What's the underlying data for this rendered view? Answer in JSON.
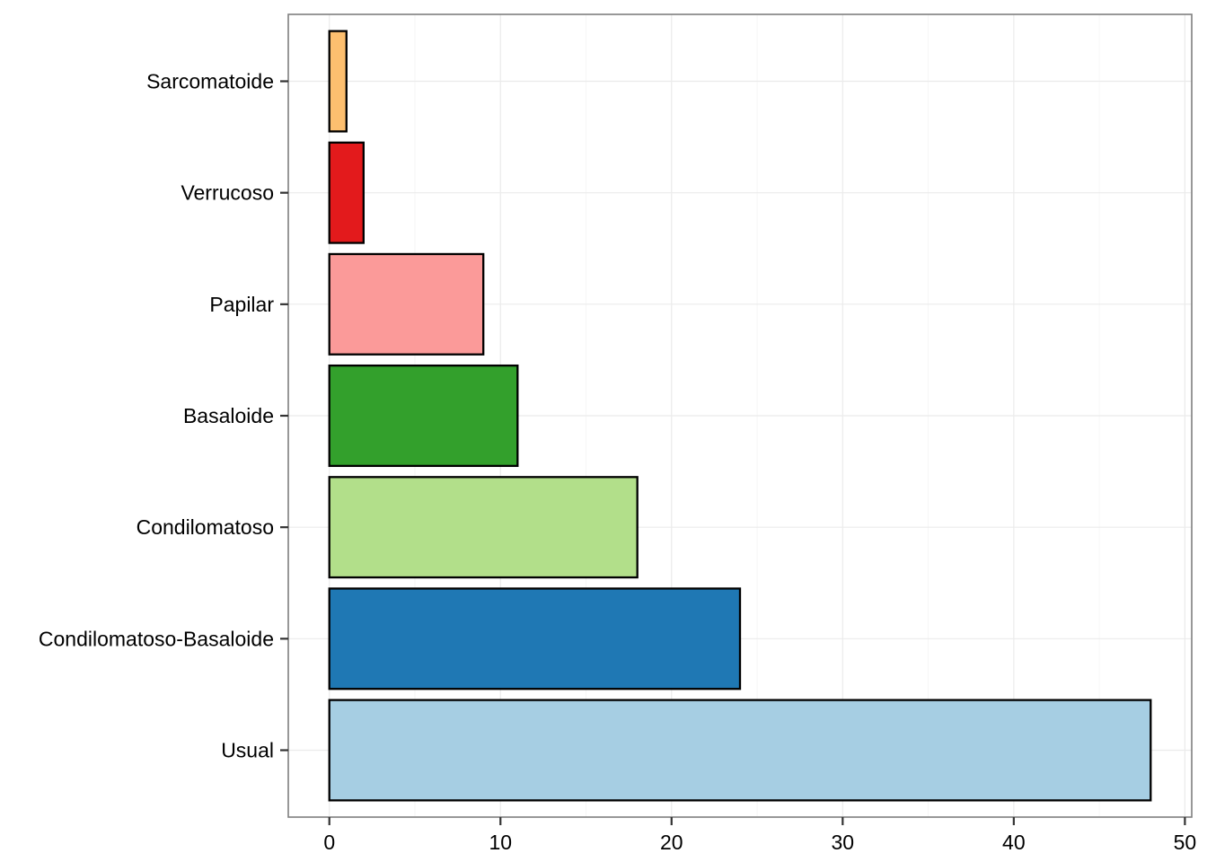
{
  "chart_data": {
    "type": "bar",
    "orientation": "horizontal",
    "title": "",
    "xlabel": "",
    "ylabel": "",
    "categories": [
      "Usual",
      "Condilomatoso-Basaloide",
      "Condilomatoso",
      "Basaloide",
      "Papilar",
      "Verrucoso",
      "Sarcomatoide"
    ],
    "values": [
      48,
      24,
      18,
      11,
      9,
      2,
      1
    ],
    "colors": [
      "#a6cee3",
      "#1f78b4",
      "#b2df8a",
      "#33a02c",
      "#fb9a99",
      "#e31a1c",
      "#fdbf6f"
    ],
    "xlim": [
      -2.4,
      50.4
    ],
    "x_ticks": [
      0,
      10,
      20,
      30,
      40,
      50
    ],
    "x_tick_labels": [
      "0",
      "10",
      "20",
      "30",
      "40",
      "50"
    ],
    "grid": true,
    "legend": "none"
  }
}
